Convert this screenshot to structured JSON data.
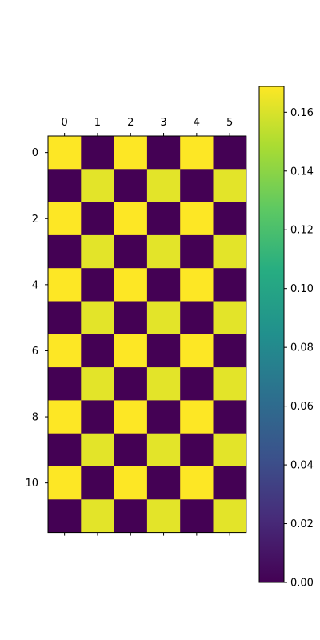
{
  "chart_data": {
    "type": "heatmap",
    "title": "",
    "xlabel": "",
    "ylabel": "",
    "x_tick_labels": [
      "0",
      "1",
      "2",
      "3",
      "4",
      "5"
    ],
    "y_tick_labels": [
      "0",
      "2",
      "4",
      "6",
      "8",
      "10"
    ],
    "rows": 12,
    "cols": 6,
    "values": [
      [
        0.1688,
        0,
        0.1688,
        0,
        0.1688,
        0
      ],
      [
        0,
        0.1625,
        0,
        0.1625,
        0,
        0.1625
      ],
      [
        0.1688,
        0,
        0.1688,
        0,
        0.1688,
        0
      ],
      [
        0,
        0.1625,
        0,
        0.1625,
        0,
        0.1625
      ],
      [
        0.1688,
        0,
        0.1688,
        0,
        0.1688,
        0
      ],
      [
        0,
        0.1625,
        0,
        0.1625,
        0,
        0.1625
      ],
      [
        0.1688,
        0,
        0.1688,
        0,
        0.1688,
        0
      ],
      [
        0,
        0.1625,
        0,
        0.1625,
        0,
        0.1625
      ],
      [
        0.1688,
        0,
        0.1688,
        0,
        0.1688,
        0
      ],
      [
        0,
        0.1625,
        0,
        0.1625,
        0,
        0.1625
      ],
      [
        0.1688,
        0,
        0.1688,
        0,
        0.1688,
        0
      ],
      [
        0,
        0.1625,
        0,
        0.1625,
        0,
        0.1625
      ]
    ],
    "colormap": "viridis",
    "colorbar": {
      "min": 0,
      "max": 0.1688,
      "tick_labels": [
        "0.00",
        "0.02",
        "0.04",
        "0.06",
        "0.08",
        "0.10",
        "0.12",
        "0.14",
        "0.16"
      ],
      "tick_values": [
        0,
        0.02,
        0.04,
        0.06,
        0.08,
        0.1,
        0.12,
        0.14,
        0.16
      ],
      "placement": "right"
    }
  }
}
